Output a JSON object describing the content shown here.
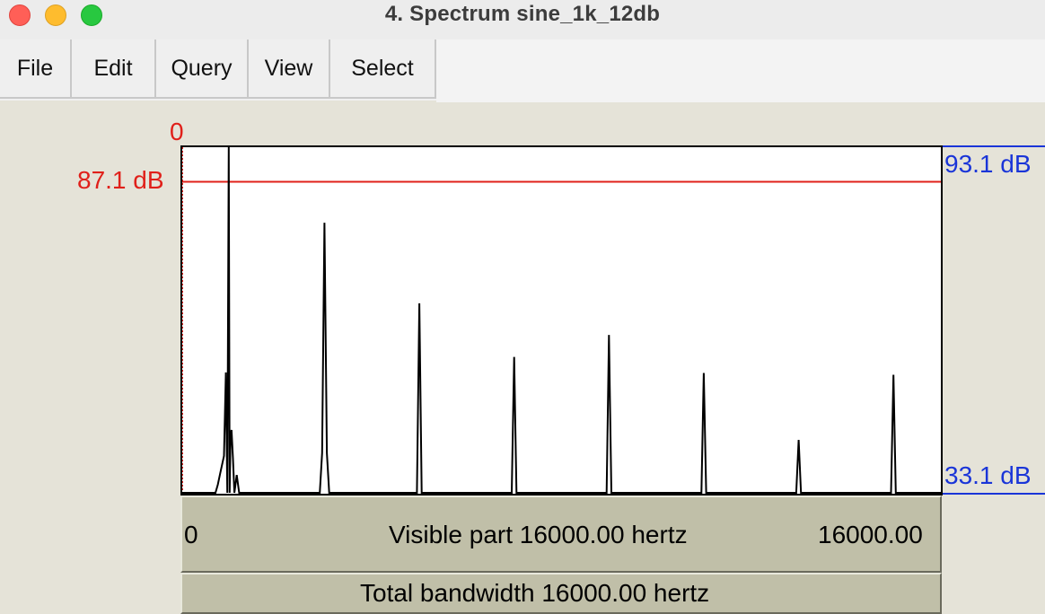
{
  "window": {
    "title": "4. Spectrum sine_1k_12db"
  },
  "menu": {
    "items": [
      {
        "label": "File"
      },
      {
        "label": "Edit"
      },
      {
        "label": "Query"
      },
      {
        "label": "View"
      },
      {
        "label": "Select"
      }
    ]
  },
  "spectrum": {
    "left_top_label": "0",
    "cursor_level_label": "87.1 dB",
    "right_top_label": "93.1 dB",
    "right_bottom_label": "33.1 dB",
    "visible_start_label": "0",
    "visible_part_label": "Visible part 16000.00 hertz",
    "visible_end_label": "16000.00",
    "total_bandwidth_label": "Total bandwidth 16000.00 hertz",
    "colors": {
      "cursor": "#e0201a",
      "axis_labels": "#1a35d8",
      "trace": "#000000"
    }
  },
  "chart_data": {
    "type": "line",
    "xlabel": "",
    "ylabel": "",
    "xlim": [
      0,
      16000
    ],
    "ylim": [
      33.1,
      93.1
    ],
    "cursor_db": 87.1,
    "x": [
      0,
      700,
      750,
      800,
      880,
      920,
      950,
      980,
      1000,
      1020,
      1040,
      1070,
      1100,
      1150,
      1200,
      1600,
      2900,
      2950,
      3000,
      3050,
      3100,
      3150,
      4950,
      5000,
      5050,
      6950,
      7000,
      7050,
      8950,
      9000,
      9050,
      10950,
      11000,
      11050,
      12950,
      13000,
      13050,
      14950,
      15000,
      15050,
      16000
    ],
    "y": [
      33.1,
      33.1,
      34.5,
      36.5,
      39.5,
      54.0,
      33.1,
      93.1,
      33.1,
      43.5,
      44.0,
      39.0,
      33.1,
      36.2,
      33.1,
      33.1,
      33.1,
      40.0,
      80.0,
      40.0,
      33.1,
      33.1,
      33.1,
      66.0,
      33.1,
      33.1,
      56.7,
      33.1,
      33.1,
      60.5,
      33.1,
      33.1,
      53.9,
      33.1,
      33.1,
      42.3,
      33.1,
      33.1,
      53.6,
      33.1,
      33.1
    ]
  }
}
